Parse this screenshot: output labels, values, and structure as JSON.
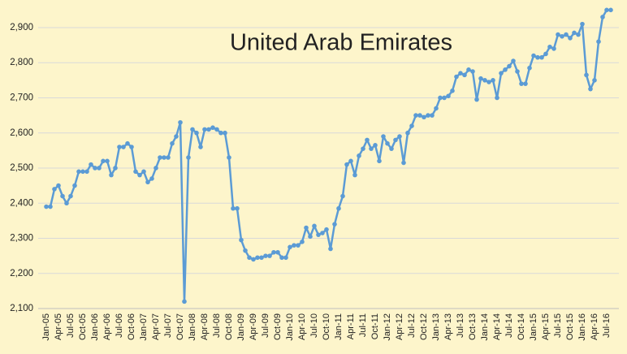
{
  "chart_data": {
    "type": "line",
    "title": "United Arab Emirates",
    "categories": [
      "Jan-05",
      null,
      null,
      "Apr-05",
      null,
      null,
      "Jul-05",
      null,
      null,
      "Oct-05",
      null,
      null,
      "Jan-06",
      null,
      null,
      "Apr-06",
      null,
      null,
      "Jul-06",
      null,
      null,
      "Oct-06",
      null,
      null,
      "Jan-07",
      null,
      null,
      "Apr-07",
      null,
      null,
      "Jul-07",
      null,
      null,
      "Oct-07",
      null,
      null,
      "Jan-08",
      null,
      null,
      "Apr-08",
      null,
      null,
      "Jul-08",
      null,
      null,
      "Oct-08",
      null,
      null,
      "Jan-09",
      null,
      null,
      "Apr-09",
      null,
      null,
      "Jul-09",
      null,
      null,
      "Oct-09",
      null,
      null,
      "Jan-10",
      null,
      null,
      "Apr-10",
      null,
      null,
      "Jul-10",
      null,
      null,
      "Oct-10",
      null,
      null,
      "Jan-11",
      null,
      null,
      "Apr-11",
      null,
      null,
      "Jul-11",
      null,
      null,
      "Oct-11",
      null,
      null,
      "Jan-12",
      null,
      null,
      "Apr-12",
      null,
      null,
      "Jul-12",
      null,
      null,
      "Oct-12",
      null,
      null,
      "Jan-13",
      null,
      null,
      "Apr-13",
      null,
      null,
      "Jul-13",
      null,
      null,
      "Oct-13",
      null,
      null,
      "Jan-14",
      null,
      null,
      "Apr-14",
      null,
      null,
      "Jul-14",
      null,
      null,
      "Oct-14",
      null,
      null,
      "Jan-15",
      null,
      null,
      "Apr-15",
      null,
      null,
      "Jul-15",
      null,
      null,
      "Oct-15",
      null,
      null,
      "Jan-16",
      null,
      null,
      "Apr-16",
      null,
      null,
      "Jul-16",
      null
    ],
    "values": [
      2390,
      2390,
      2440,
      2450,
      2420,
      2400,
      2420,
      2450,
      2490,
      2490,
      2490,
      2510,
      2500,
      2500,
      2520,
      2520,
      2480,
      2500,
      2560,
      2560,
      2570,
      2560,
      2490,
      2480,
      2490,
      2460,
      2470,
      2500,
      2530,
      2530,
      2530,
      2570,
      2590,
      2630,
      2120,
      2530,
      2610,
      2600,
      2560,
      2610,
      2610,
      2615,
      2610,
      2600,
      2600,
      2530,
      2385,
      2385,
      2295,
      2265,
      2245,
      2240,
      2245,
      2245,
      2250,
      2250,
      2260,
      2260,
      2245,
      2245,
      2275,
      2280,
      2280,
      2290,
      2330,
      2305,
      2335,
      2310,
      2315,
      2325,
      2270,
      2340,
      2385,
      2420,
      2510,
      2520,
      2480,
      2535,
      2555,
      2580,
      2555,
      2565,
      2520,
      2590,
      2570,
      2555,
      2580,
      2590,
      2515,
      2600,
      2620,
      2650,
      2650,
      2645,
      2650,
      2650,
      2670,
      2700,
      2700,
      2705,
      2720,
      2760,
      2770,
      2765,
      2780,
      2775,
      2695,
      2755,
      2750,
      2745,
      2750,
      2700,
      2770,
      2780,
      2790,
      2805,
      2775,
      2740,
      2740,
      2785,
      2820,
      2815,
      2815,
      2825,
      2845,
      2840,
      2880,
      2875,
      2880,
      2870,
      2885,
      2880,
      2910,
      2765,
      2725,
      2750,
      2860,
      2930,
      2950,
      2950
    ],
    "color": "#5b9bd5",
    "ylim": [
      2100,
      2960
    ],
    "yticks": [
      {
        "value": 2100,
        "label": "2,100"
      },
      {
        "value": 2200,
        "label": "2,200"
      },
      {
        "value": 2300,
        "label": "2,300"
      },
      {
        "value": 2400,
        "label": "2,400"
      },
      {
        "value": 2500,
        "label": "2,500"
      },
      {
        "value": 2600,
        "label": "2,600"
      },
      {
        "value": 2700,
        "label": "2,700"
      },
      {
        "value": 2800,
        "label": "2,800"
      },
      {
        "value": 2900,
        "label": "2,900"
      }
    ],
    "grid": true
  }
}
